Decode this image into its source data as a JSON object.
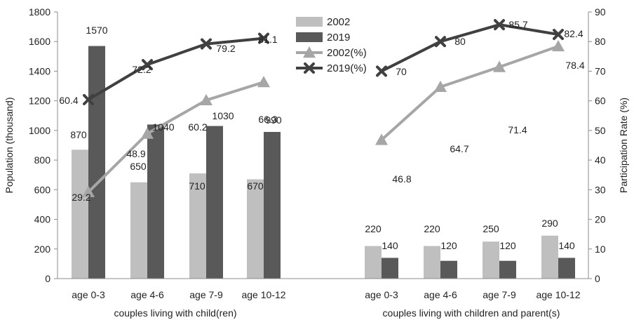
{
  "chart_data": {
    "type": "bar+line",
    "groups": [
      "couples living with child(ren)",
      "couples living with children and parent(s)"
    ],
    "categories": [
      "age 0-3",
      "age 4-6",
      "age 7-9",
      "age 10-12"
    ],
    "ylabel_left": "Population (thousand)",
    "ylabel_right": "Participation Rate (%)",
    "ylim_left": [
      0,
      1800
    ],
    "ylim_right": [
      0,
      90
    ],
    "yticks_left": [
      0,
      200,
      400,
      600,
      800,
      1000,
      1200,
      1400,
      1600,
      1800
    ],
    "yticks_right": [
      0,
      10,
      20,
      30,
      40,
      50,
      60,
      70,
      80,
      90
    ],
    "bar_series": [
      {
        "name": "2002",
        "color": "#bfbfbf",
        "values": [
          [
            870,
            650,
            710,
            670
          ],
          [
            220,
            220,
            250,
            290
          ]
        ]
      },
      {
        "name": "2019",
        "color": "#595959",
        "values": [
          [
            1570,
            1040,
            1030,
            990
          ],
          [
            140,
            120,
            120,
            140
          ]
        ]
      }
    ],
    "line_series": [
      {
        "name": "2002(%)",
        "color": "#a6a6a6",
        "marker": "triangle",
        "values": [
          [
            29.2,
            48.9,
            60.2,
            66.3
          ],
          [
            46.8,
            64.7,
            71.4,
            78.4
          ]
        ]
      },
      {
        "name": "2019(%)",
        "color": "#404040",
        "marker": "x",
        "values": [
          [
            60.4,
            72.2,
            79.2,
            81.1
          ],
          [
            70,
            80,
            85.7,
            82.4
          ]
        ]
      }
    ],
    "legend_position": "top-center"
  }
}
